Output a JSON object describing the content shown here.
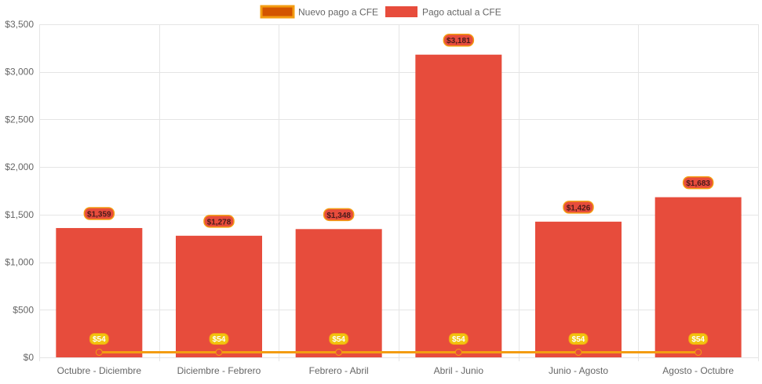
{
  "colors": {
    "bar": "#e74c3c",
    "line": "#f39c12",
    "line_point": "#e74c3c",
    "bar_label_bg": "#e74c3c",
    "bar_label_border": "#f39c12",
    "bar_label_text": "#4a1a1a",
    "line_label_bg": "#f1c40f",
    "line_label_text": "#ffffff",
    "legend_line_swatch_fill": "#d35400",
    "legend_line_swatch_border": "#f39c12",
    "grid": "#e5e5e5",
    "axis_text": "#666666"
  },
  "chart_data": {
    "type": "bar",
    "title": "",
    "xlabel": "",
    "ylabel": "",
    "ylim": [
      0,
      3500
    ],
    "y_ticks": [
      0,
      500,
      1000,
      1500,
      2000,
      2500,
      3000,
      3500
    ],
    "y_tick_labels": [
      "$0",
      "$500",
      "$1,000",
      "$1,500",
      "$2,000",
      "$2,500",
      "$3,000",
      "$3,500"
    ],
    "legend": [
      "Nuevo pago a CFE",
      "Pago actual a CFE"
    ],
    "legend_position": "top-center",
    "grid": true,
    "categories": [
      "Octubre - Diciembre",
      "Diciembre - Febrero",
      "Febrero - Abril",
      "Abril - Junio",
      "Junio - Agosto",
      "Agosto - Octubre"
    ],
    "series": [
      {
        "name": "Nuevo pago a CFE",
        "type": "line",
        "values": [
          54,
          54,
          54,
          54,
          54,
          54
        ],
        "labels": [
          "$54",
          "$54",
          "$54",
          "$54",
          "$54",
          "$54"
        ]
      },
      {
        "name": "Pago actual a CFE",
        "type": "bar",
        "values": [
          1359,
          1278,
          1348,
          3181,
          1426,
          1683
        ],
        "labels": [
          "$1,359",
          "$1,278",
          "$1,348",
          "$3,181",
          "$1,426",
          "$1,683"
        ]
      }
    ]
  }
}
